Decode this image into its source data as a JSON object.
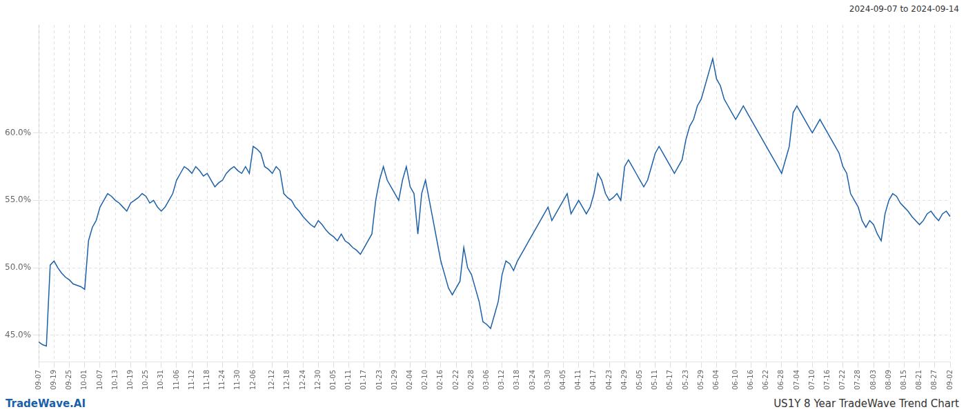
{
  "chart_data": {
    "type": "line",
    "color": "#1a5fa8",
    "grid": true,
    "annotations": [
      "2024-09-07 to 2024-09-14",
      "TradeWave.AI",
      "US1Y 8 Year TradeWave Trend Chart"
    ],
    "ylim": [
      43.0,
      68.0
    ],
    "yticks": [
      {
        "value": 45.0,
        "label": "45.0%"
      },
      {
        "value": 50.0,
        "label": "50.0%"
      },
      {
        "value": 55.0,
        "label": "55.0%"
      },
      {
        "value": 60.0,
        "label": "60.0%"
      }
    ],
    "categories": [
      "09-07",
      null,
      null,
      null,
      "09-19",
      null,
      null,
      null,
      "09-25",
      null,
      null,
      null,
      "10-01",
      null,
      null,
      null,
      "10-07",
      null,
      null,
      null,
      "10-13",
      null,
      null,
      null,
      "10-19",
      null,
      null,
      null,
      "10-25",
      null,
      null,
      null,
      "10-31",
      null,
      null,
      null,
      "11-06",
      null,
      null,
      null,
      "11-12",
      null,
      null,
      null,
      "11-18",
      null,
      null,
      null,
      "11-24",
      null,
      null,
      null,
      "11-30",
      null,
      null,
      null,
      "12-06",
      null,
      null,
      null,
      null,
      "12-12",
      null,
      null,
      null,
      "12-18",
      null,
      null,
      null,
      "12-24",
      null,
      null,
      null,
      "12-30",
      null,
      null,
      null,
      "01-05",
      null,
      null,
      null,
      "01-11",
      null,
      null,
      null,
      "01-17",
      null,
      null,
      null,
      "01-23",
      null,
      null,
      null,
      "01-29",
      null,
      null,
      null,
      "02-04",
      null,
      null,
      null,
      "02-10",
      null,
      null,
      null,
      "02-16",
      null,
      null,
      null,
      "02-22",
      null,
      null,
      null,
      "02-28",
      null,
      null,
      null,
      "03-06",
      null,
      null,
      null,
      "03-12",
      null,
      null,
      null,
      "03-18",
      null,
      null,
      null,
      "03-24",
      null,
      null,
      null,
      "03-30",
      null,
      null,
      null,
      "04-05",
      null,
      null,
      null,
      "04-11",
      null,
      null,
      null,
      "04-17",
      null,
      null,
      null,
      "04-23",
      null,
      null,
      null,
      "04-29",
      null,
      null,
      null,
      "05-05",
      null,
      null,
      null,
      "05-11",
      null,
      null,
      null,
      "05-17",
      null,
      null,
      null,
      "05-23",
      null,
      null,
      null,
      "05-29",
      null,
      null,
      null,
      "06-04",
      null,
      null,
      null,
      null,
      "06-10",
      null,
      null,
      null,
      "06-16",
      null,
      null,
      null,
      "06-22",
      null,
      null,
      null,
      "06-28",
      null,
      null,
      null,
      "07-04",
      null,
      null,
      null,
      "07-10",
      null,
      null,
      null,
      "07-16",
      null,
      null,
      null,
      "07-22",
      null,
      null,
      null,
      "07-28",
      null,
      null,
      null,
      "08-03",
      null,
      null,
      null,
      "08-09",
      null,
      null,
      null,
      "08-15",
      null,
      null,
      null,
      "08-21",
      null,
      null,
      null,
      "08-27",
      null,
      null,
      null,
      "09-02"
    ],
    "values": [
      44.5,
      44.3,
      44.2,
      50.2,
      50.5,
      50.0,
      49.6,
      49.3,
      49.1,
      48.8,
      48.7,
      48.6,
      48.4,
      52.0,
      53.0,
      53.5,
      54.5,
      55.0,
      55.5,
      55.3,
      55.0,
      54.8,
      54.5,
      54.2,
      54.8,
      55.0,
      55.2,
      55.5,
      55.3,
      54.8,
      55.0,
      54.5,
      54.2,
      54.5,
      55.0,
      55.5,
      56.5,
      57.0,
      57.5,
      57.3,
      57.0,
      57.5,
      57.2,
      56.8,
      57.0,
      56.5,
      56.0,
      56.3,
      56.5,
      57.0,
      57.3,
      57.5,
      57.2,
      57.0,
      57.5,
      57.0,
      59.0,
      58.8,
      58.5,
      57.5,
      57.3,
      57.0,
      57.5,
      57.2,
      55.5,
      55.2,
      55.0,
      54.5,
      54.2,
      53.8,
      53.5,
      53.2,
      53.0,
      53.5,
      53.2,
      52.8,
      52.5,
      52.3,
      52.0,
      52.5,
      52.0,
      51.8,
      51.5,
      51.3,
      51.0,
      51.5,
      52.0,
      52.5,
      55.0,
      56.5,
      57.5,
      56.5,
      56.0,
      55.5,
      55.0,
      56.5,
      57.5,
      56.0,
      55.5,
      52.5,
      55.5,
      56.5,
      55.0,
      53.5,
      52.0,
      50.5,
      49.5,
      48.5,
      48.0,
      48.5,
      49.0,
      51.5,
      50.0,
      49.5,
      48.5,
      47.5,
      46.0,
      45.8,
      45.5,
      46.5,
      47.5,
      49.5,
      50.5,
      50.3,
      49.8,
      50.5,
      51.0,
      51.5,
      52.0,
      52.5,
      53.0,
      53.5,
      54.0,
      54.5,
      53.5,
      54.0,
      54.5,
      55.0,
      55.5,
      54.0,
      54.5,
      55.0,
      54.5,
      54.0,
      54.5,
      55.5,
      57.0,
      56.5,
      55.5,
      55.0,
      55.2,
      55.5,
      55.0,
      57.5,
      58.0,
      57.5,
      57.0,
      56.5,
      56.0,
      56.5,
      57.5,
      58.5,
      59.0,
      58.5,
      58.0,
      57.5,
      57.0,
      57.5,
      58.0,
      59.5,
      60.5,
      61.0,
      62.0,
      62.5,
      63.5,
      64.5,
      65.5,
      64.0,
      63.5,
      62.5,
      62.0,
      61.5,
      61.0,
      61.5,
      62.0,
      61.5,
      61.0,
      60.5,
      60.0,
      59.5,
      59.0,
      58.5,
      58.0,
      57.5,
      57.0,
      58.0,
      59.0,
      61.5,
      62.0,
      61.5,
      61.0,
      60.5,
      60.0,
      60.5,
      61.0,
      60.5,
      60.0,
      59.5,
      59.0,
      58.5,
      57.5,
      57.0,
      55.5,
      55.0,
      54.5,
      53.5,
      53.0,
      53.5,
      53.2,
      52.5,
      52.0,
      54.0,
      55.0,
      55.5,
      55.3,
      54.8,
      54.5,
      54.2,
      53.8,
      53.5,
      53.2,
      53.5,
      54.0,
      54.2,
      53.8,
      53.5,
      54.0,
      54.2,
      53.8
    ]
  }
}
